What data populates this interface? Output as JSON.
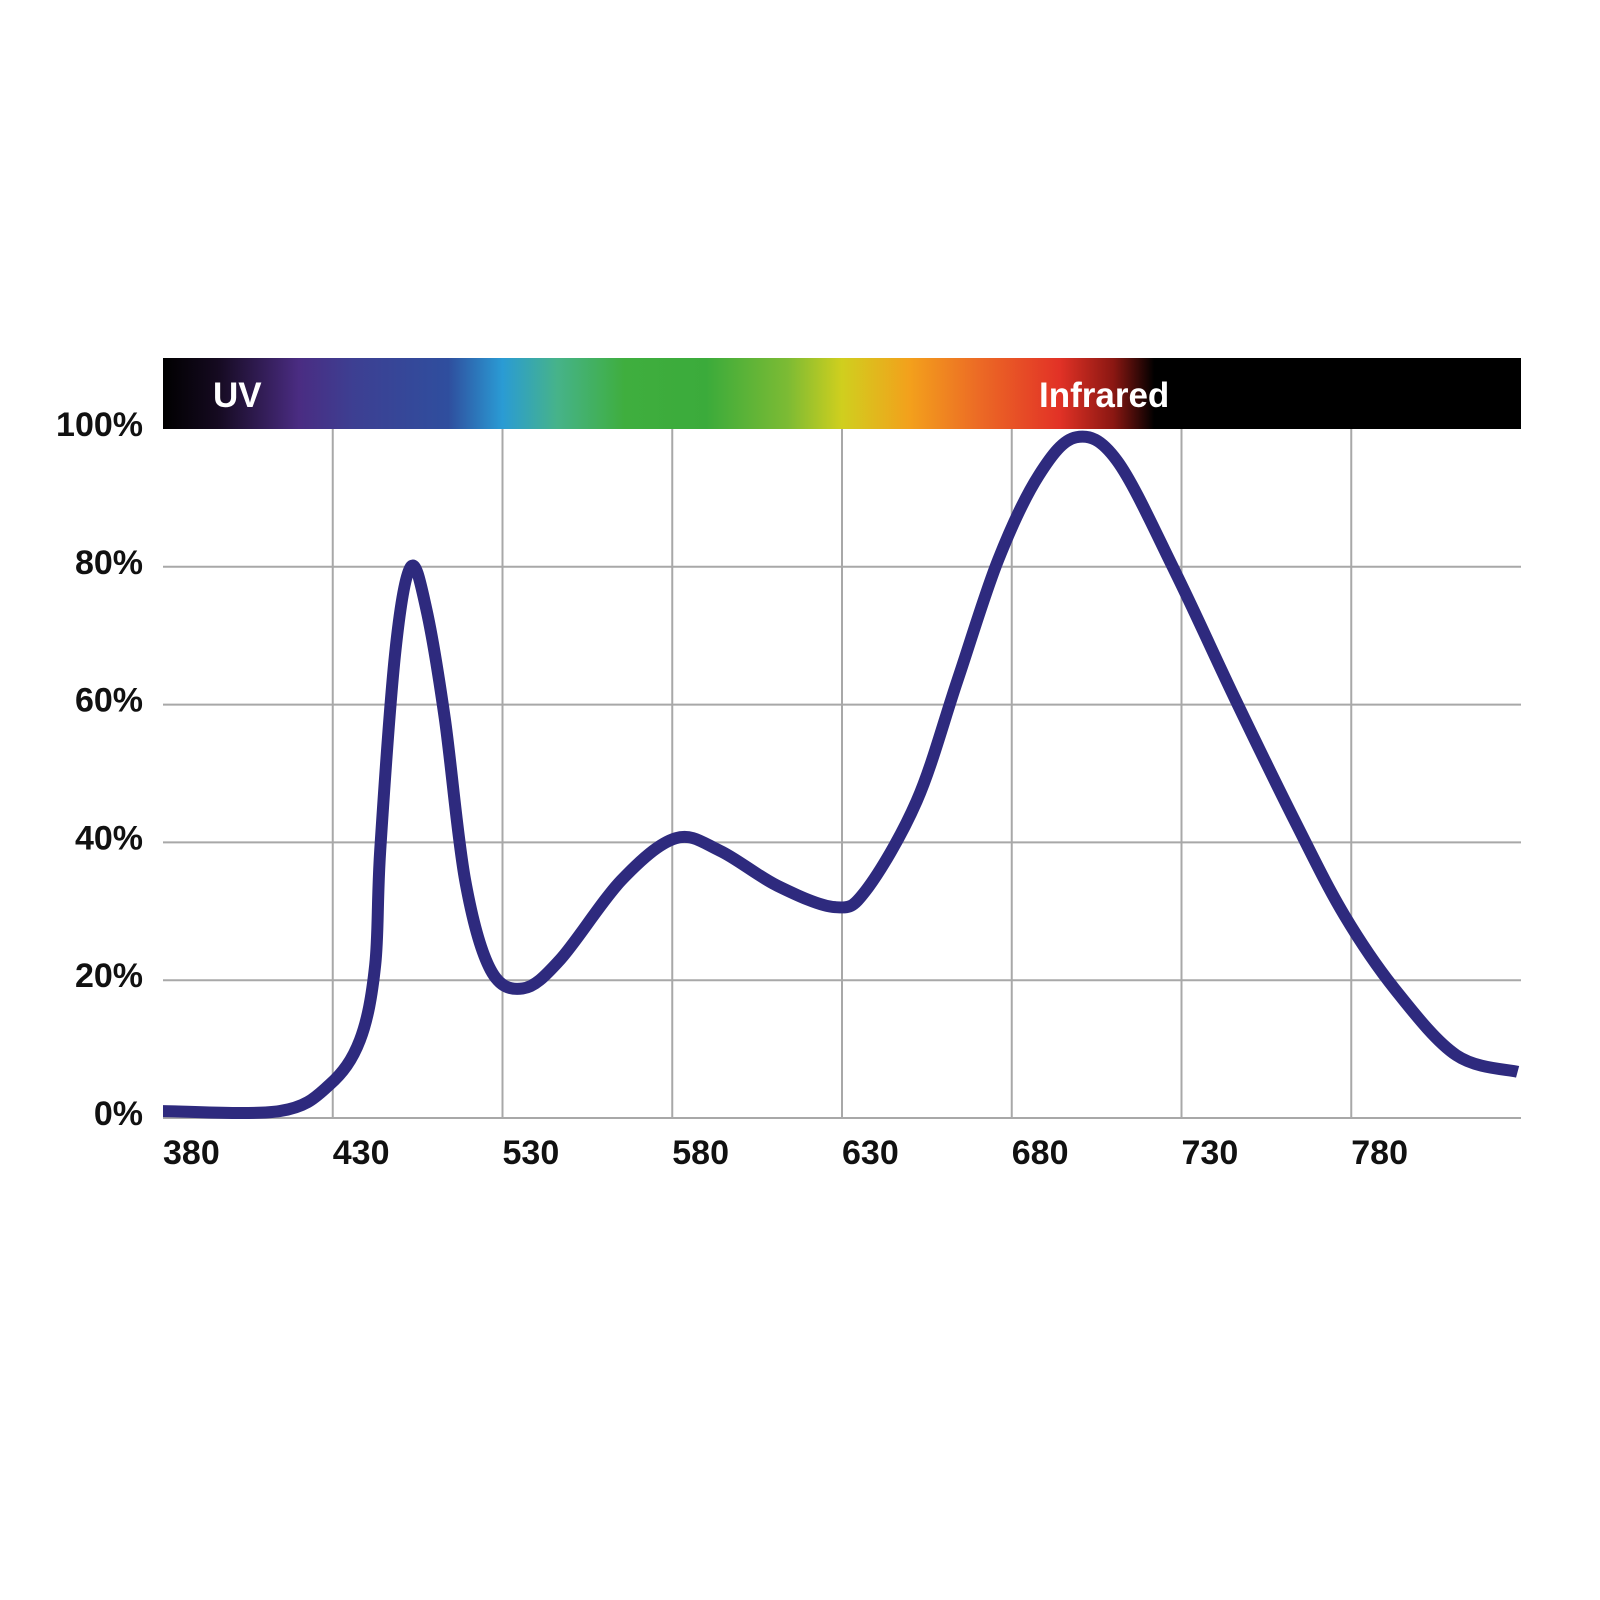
{
  "chart_data": {
    "type": "line",
    "band_labels": [
      "UV",
      "Infrared"
    ],
    "x": [
      380,
      414.4,
      429,
      446,
      455,
      458,
      467,
      476,
      485,
      496,
      508,
      523,
      536,
      547,
      565,
      581,
      594,
      611,
      628,
      637,
      652,
      664,
      676,
      688,
      699,
      711,
      728,
      746,
      764,
      778,
      793,
      811,
      829
    ],
    "series": [
      {
        "color": "#2e2a7e",
        "values": [
          1,
          1,
          4.8,
          11.3,
          22.2,
          39,
          68,
          80,
          74,
          58,
          34.5,
          21.5,
          18.8,
          23,
          34.5,
          40.6,
          38.8,
          33.7,
          30.6,
          33,
          46,
          63.5,
          81,
          93.3,
          98.8,
          95.4,
          79.4,
          60.6,
          42.5,
          29.4,
          18.6,
          9.1,
          6.7
        ]
      }
    ],
    "xlim": [
      380,
      830
    ],
    "xticks": [
      380,
      430,
      530,
      580,
      630,
      680,
      730,
      780
    ],
    "ylim": [
      0,
      100
    ],
    "yticks": [
      {
        "value": 0,
        "label": "0%"
      },
      {
        "value": 20,
        "label": "20%"
      },
      {
        "value": 40,
        "label": "40%"
      },
      {
        "value": 60,
        "label": "60%"
      },
      {
        "value": 80,
        "label": "80%"
      },
      {
        "value": 100,
        "label": "100%"
      }
    ],
    "grid": true
  }
}
